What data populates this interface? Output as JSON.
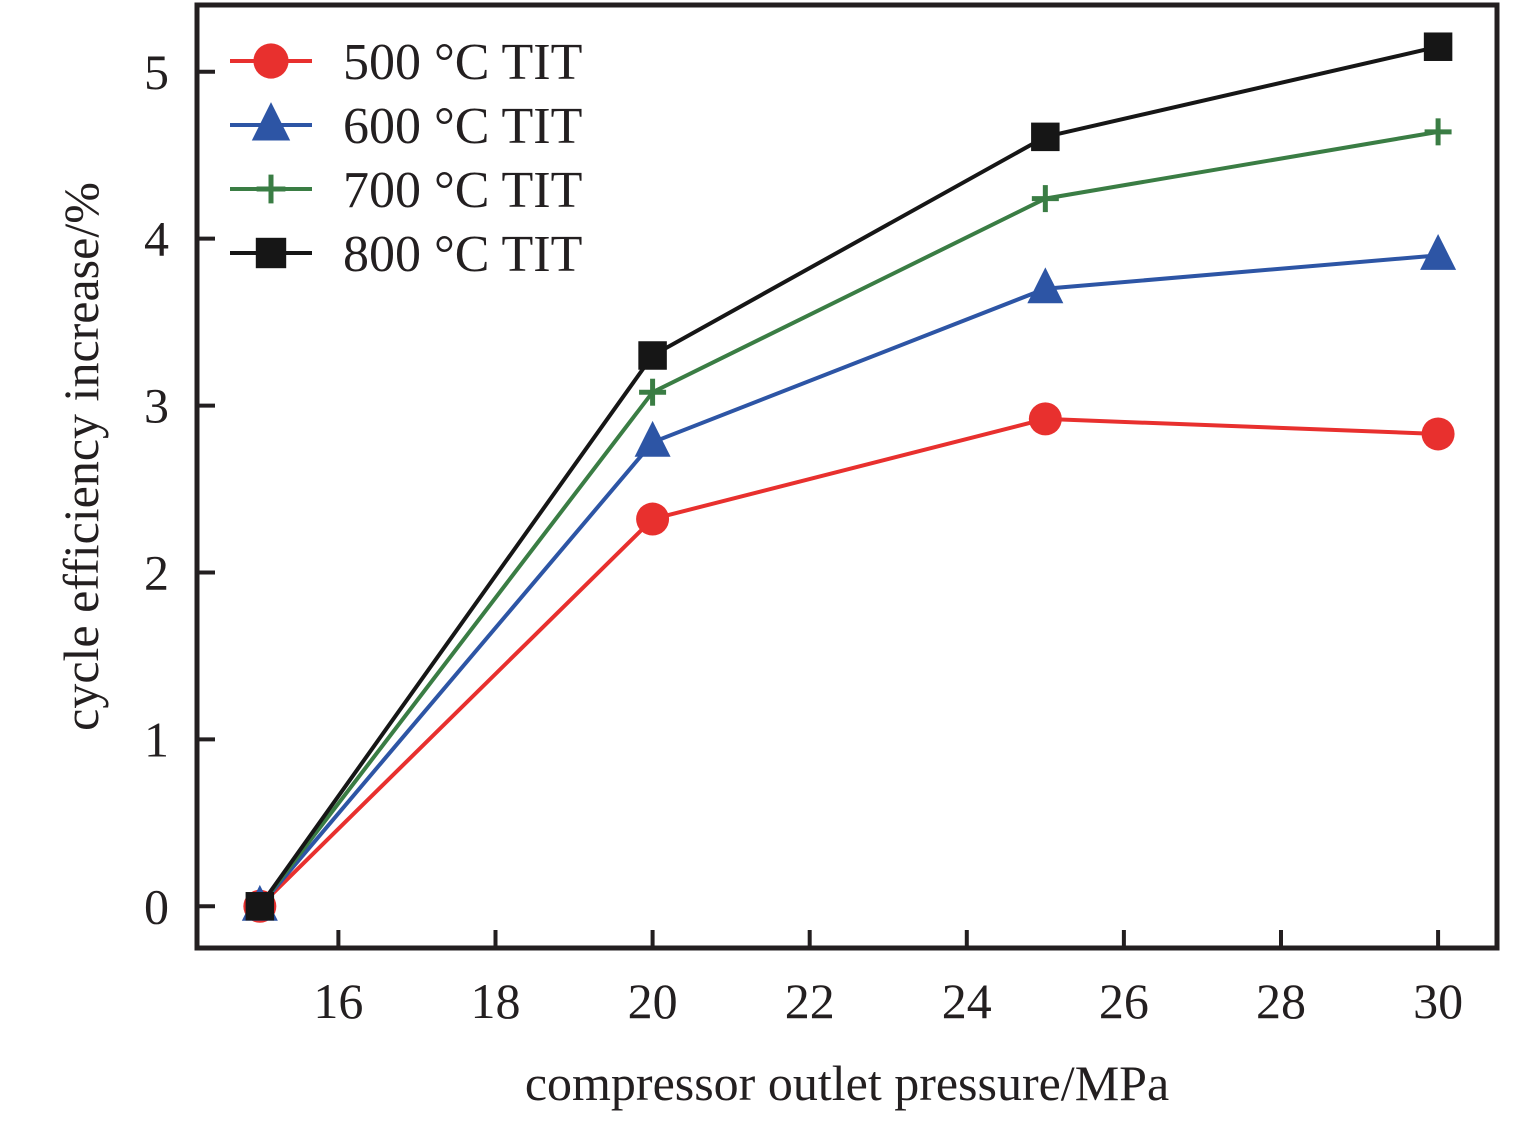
{
  "chart_data": {
    "type": "line",
    "title": "",
    "xlabel": "compressor outlet pressure/MPa",
    "ylabel": "cycle efficiency increase/%",
    "xlim": [
      14.2,
      30.75
    ],
    "ylim": [
      -0.25,
      5.4
    ],
    "xticks": [
      16,
      18,
      20,
      22,
      24,
      26,
      28,
      30
    ],
    "yticks": [
      0,
      1,
      2,
      3,
      4,
      5
    ],
    "grid": false,
    "legend_position": "top-left",
    "x": [
      15,
      20,
      25,
      30
    ],
    "series": [
      {
        "name": "500 °C TIT",
        "color": "#e8302e",
        "marker": "circle",
        "values": [
          0,
          2.32,
          2.92,
          2.83
        ]
      },
      {
        "name": "600 °C TIT",
        "color": "#2d55a5",
        "marker": "triangle",
        "values": [
          0,
          2.78,
          3.7,
          3.9
        ]
      },
      {
        "name": "700 °C TIT",
        "color": "#3a7d44",
        "marker": "plus",
        "values": [
          0,
          3.08,
          4.24,
          4.64
        ]
      },
      {
        "name": "800 °C TIT",
        "color": "#161616",
        "marker": "square",
        "values": [
          0,
          3.3,
          4.61,
          5.15
        ]
      }
    ]
  }
}
